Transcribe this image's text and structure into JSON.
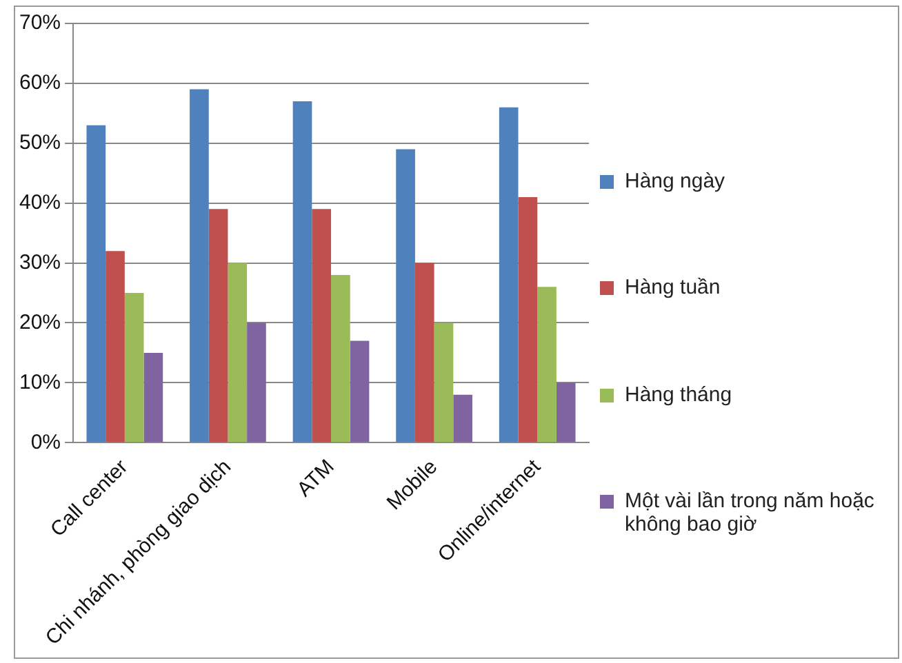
{
  "chart_data": {
    "type": "bar",
    "categories": [
      "Call center",
      "Chi nhánh, phòng giao dịch",
      "ATM",
      "Mobile",
      "Online/internet"
    ],
    "series": [
      {
        "name": "Hàng ngày",
        "color": "#4f81bd",
        "values": [
          53,
          59,
          57,
          49,
          56
        ]
      },
      {
        "name": "Hàng tuần",
        "color": "#c0504d",
        "values": [
          32,
          39,
          39,
          30,
          41
        ]
      },
      {
        "name": "Hàng tháng",
        "color": "#9bbb59",
        "values": [
          25,
          30,
          28,
          20,
          26
        ]
      },
      {
        "name": "Một vài lần trong năm hoặc không bao giờ",
        "color": "#8064a2",
        "values": [
          15,
          20,
          17,
          8,
          10
        ]
      }
    ],
    "ylim": [
      0,
      70
    ],
    "yticks": [
      {
        "value": 0,
        "label": "0%"
      },
      {
        "value": 10,
        "label": "10%"
      },
      {
        "value": 20,
        "label": "20%"
      },
      {
        "value": 30,
        "label": "30%"
      },
      {
        "value": 40,
        "label": "40%"
      },
      {
        "value": 50,
        "label": "50%"
      },
      {
        "value": 60,
        "label": "60%"
      },
      {
        "value": 70,
        "label": "70%"
      }
    ],
    "grid": "y",
    "legend": "right"
  }
}
